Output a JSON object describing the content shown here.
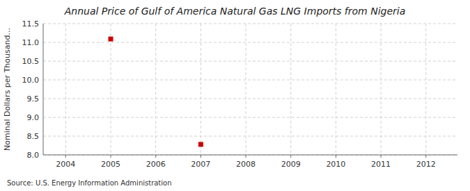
{
  "chart_data": {
    "type": "scatter",
    "title": "Annual Price of Gulf of America Natural Gas LNG Imports from Nigeria",
    "y_label": "Nominal Dollars per Thousand...",
    "annotations": [
      "Source: U.S. Energy Information Administration"
    ],
    "x": [
      2005,
      2007
    ],
    "values": [
      11.09,
      8.28
    ],
    "color": "#cc0000",
    "marker": "square",
    "xlim": [
      2003.5,
      2012.7
    ],
    "ylim": [
      8.0,
      11.5
    ],
    "xticks": [
      2004,
      2005,
      2006,
      2007,
      2008,
      2009,
      2010,
      2011,
      2012
    ],
    "yticks": [
      {
        "value": 8.0,
        "label": "8.0"
      },
      8.5,
      {
        "value": 9.0,
        "label": "9.0"
      },
      9.5,
      {
        "value": 10.0,
        "label": "10.0"
      },
      10.5,
      {
        "value": 11.0,
        "label": "11.0"
      },
      11.5
    ],
    "grid": true
  }
}
